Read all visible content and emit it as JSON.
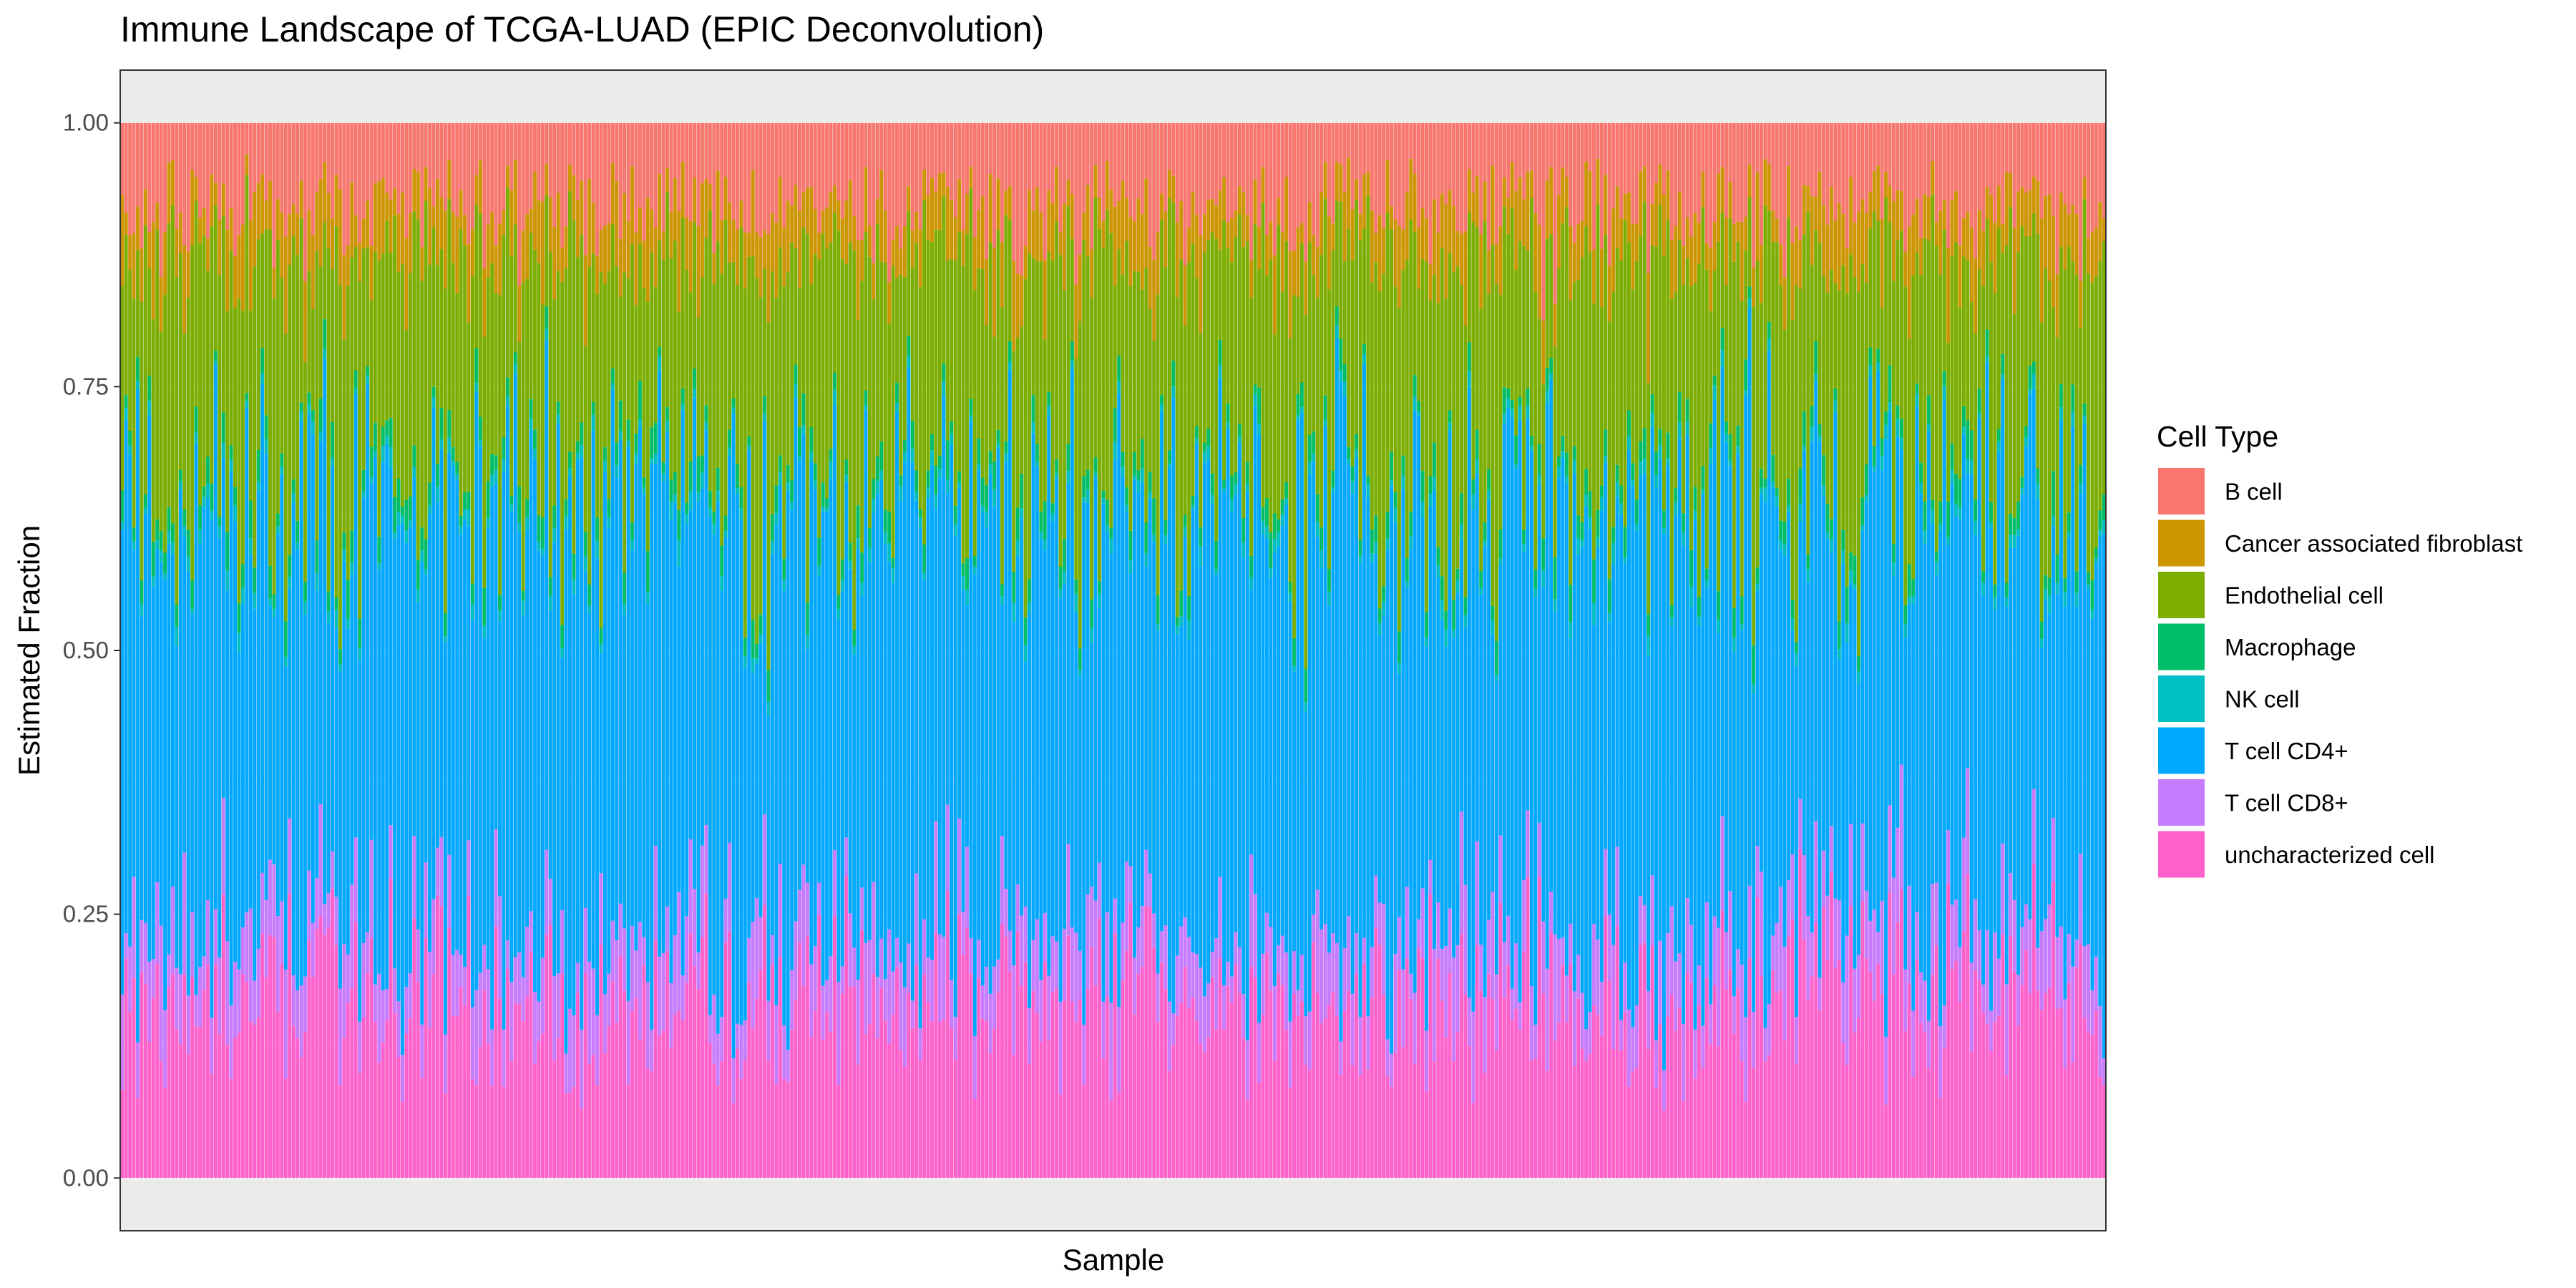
{
  "chart_data": {
    "type": "bar",
    "stacked": true,
    "title": "Immune Landscape of TCGA-LUAD (EPIC Deconvolution)",
    "xlabel": "Sample",
    "ylabel": "Estimated Fraction",
    "ylim": [
      -0.05,
      1.05
    ],
    "yticks": [
      "0.00",
      "0.25",
      "0.50",
      "0.75",
      "1.00"
    ],
    "x_tick_labels_shown": false,
    "n_samples": 510,
    "grid": true,
    "legend_position": "right",
    "legend": {
      "title": "Cell Type",
      "entries": [
        {
          "name": "B cell",
          "color": "#F8766D"
        },
        {
          "name": "Cancer associated fibroblast",
          "color": "#CD9600"
        },
        {
          "name": "Endothelial cell",
          "color": "#7CAE00"
        },
        {
          "name": "Macrophage",
          "color": "#00BE67"
        },
        {
          "name": "NK cell",
          "color": "#00BFC4"
        },
        {
          "name": "T cell CD4+",
          "color": "#00A9FF"
        },
        {
          "name": "T cell CD8+",
          "color": "#C77CFF"
        },
        {
          "name": "uncharacterized cell",
          "color": "#FF61CC"
        }
      ]
    },
    "stack_order_bottom_to_top": [
      "uncharacterized cell",
      "T cell CD8+",
      "T cell CD4+",
      "NK cell",
      "Macrophage",
      "Endothelial cell",
      "Cancer associated fibroblast",
      "B cell"
    ],
    "typical_values": {
      "uncharacterized cell": 0.16,
      "T cell CD8+": 0.06,
      "T cell CD4+": 0.41,
      "NK cell": 0.01,
      "Macrophage": 0.02,
      "Endothelial cell": 0.21,
      "Cancer associated fibroblast": 0.05,
      "B cell": 0.08
    }
  }
}
